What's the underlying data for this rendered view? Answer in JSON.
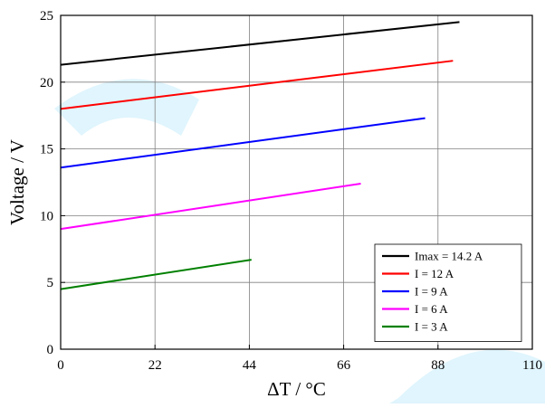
{
  "chart_data": {
    "type": "line",
    "xlabel": "ΔT / °C",
    "ylabel": "Voltage / V",
    "xlim": [
      0,
      110
    ],
    "ylim": [
      0,
      25
    ],
    "xticks": [
      0,
      22,
      44,
      66,
      88,
      110
    ],
    "yticks": [
      0,
      5,
      10,
      15,
      20,
      25
    ],
    "grid": true,
    "legend_position": "bottom-right",
    "series": [
      {
        "name": "Imax = 14.2 A",
        "color": "#000000",
        "x": [
          0,
          93
        ],
        "y": [
          21.3,
          24.5
        ]
      },
      {
        "name": "I = 12 A",
        "color": "#ff0000",
        "x": [
          0,
          91.5
        ],
        "y": [
          18.0,
          21.6
        ]
      },
      {
        "name": "I = 9 A",
        "color": "#0000ff",
        "x": [
          0,
          85
        ],
        "y": [
          13.6,
          17.3
        ]
      },
      {
        "name": "I = 6 A",
        "color": "#ff00ff",
        "x": [
          0,
          70
        ],
        "y": [
          9.0,
          12.4
        ]
      },
      {
        "name": "I = 3 A",
        "color": "#008000",
        "x": [
          0,
          44.5
        ],
        "y": [
          4.5,
          6.7
        ]
      }
    ]
  }
}
